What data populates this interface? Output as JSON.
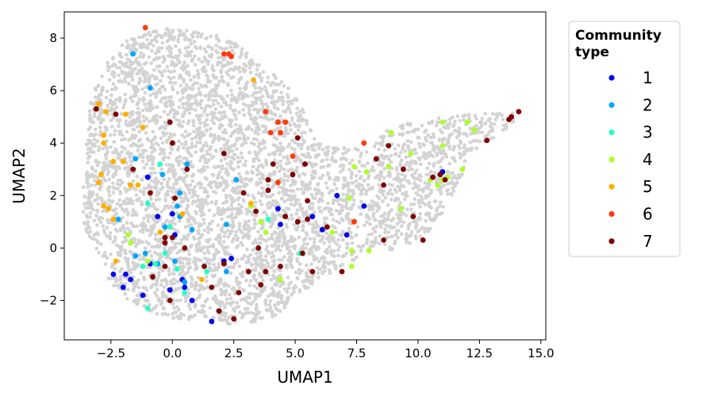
{
  "chart_data": {
    "type": "scatter",
    "xlabel": "UMAP1",
    "ylabel": "UMAP2",
    "xlim": [
      -4.4,
      15.2
    ],
    "ylim": [
      -3.5,
      9.0
    ],
    "xticks": [
      -2.5,
      0.0,
      2.5,
      5.0,
      7.5,
      10.0,
      12.5,
      15.0
    ],
    "xtick_labels": [
      "−2.5",
      "0.0",
      "2.5",
      "5.0",
      "7.5",
      "10.0",
      "12.5",
      "15.0"
    ],
    "yticks": [
      -2,
      0,
      2,
      4,
      6,
      8
    ],
    "ytick_labels": [
      "−2",
      "0",
      "2",
      "4",
      "6",
      "8"
    ],
    "grid": false,
    "legend": {
      "title": "Community type",
      "title_lines": [
        "Community",
        "type"
      ],
      "placement": "outside-right"
    },
    "background_color": "#d3d3d3",
    "series": [
      {
        "name": "1",
        "color": "#0000ee",
        "points": [
          [
            -1.0,
            2.7
          ],
          [
            -0.6,
            1.2
          ],
          [
            0.0,
            1.3
          ],
          [
            0.8,
            -2.0
          ],
          [
            1.6,
            -2.8
          ],
          [
            -2.4,
            -1.0
          ],
          [
            -1.9,
            -1.0
          ],
          [
            -2.0,
            -1.5
          ],
          [
            -1.7,
            -1.2
          ],
          [
            -1.2,
            -1.8
          ],
          [
            0.4,
            -1.2
          ],
          [
            0.5,
            -1.5
          ],
          [
            -0.1,
            -1.6
          ],
          [
            2.1,
            -0.5
          ],
          [
            2.4,
            -0.4
          ],
          [
            4.3,
            1.5
          ],
          [
            4.4,
            0.9
          ],
          [
            5.7,
            1.2
          ],
          [
            6.1,
            0.7
          ],
          [
            6.7,
            2.0
          ],
          [
            7.1,
            0.5
          ],
          [
            7.8,
            1.6
          ],
          [
            11.0,
            2.9
          ],
          [
            -0.9,
            -0.6
          ],
          [
            0.1,
            0.5
          ]
        ]
      },
      {
        "name": "2",
        "color": "#00a5ff",
        "points": [
          [
            -1.6,
            7.4
          ],
          [
            -0.9,
            6.1
          ],
          [
            -1.5,
            3.4
          ],
          [
            -0.4,
            2.8
          ],
          [
            0.3,
            2.1
          ],
          [
            0.2,
            1.6
          ],
          [
            0.6,
            3.2
          ],
          [
            -0.3,
            0.8
          ],
          [
            0.1,
            -0.5
          ],
          [
            0.8,
            0.7
          ],
          [
            2.2,
            0.9
          ],
          [
            2.6,
            2.6
          ],
          [
            -1.1,
            -0.2
          ],
          [
            -1.5,
            -0.3
          ],
          [
            -2.2,
            1.1
          ],
          [
            -0.6,
            -0.6
          ],
          [
            0.5,
            -1.3
          ],
          [
            2.2,
            -0.9
          ],
          [
            0.3,
            1.2
          ]
        ]
      },
      {
        "name": "3",
        "color": "#26ffc4",
        "points": [
          [
            -0.5,
            3.2
          ],
          [
            -1.0,
            1.7
          ],
          [
            -0.1,
            0.8
          ],
          [
            -0.3,
            -0.2
          ],
          [
            -0.7,
            -0.6
          ],
          [
            -1.2,
            -0.7
          ],
          [
            0.2,
            -0.8
          ],
          [
            0.5,
            -1.7
          ],
          [
            -1.0,
            -2.3
          ],
          [
            1.4,
            -0.9
          ],
          [
            3.9,
            1.1
          ],
          [
            5.2,
            -0.2
          ]
        ]
      },
      {
        "name": "4",
        "color": "#adff2b",
        "points": [
          [
            3.2,
            1.6
          ],
          [
            3.8,
            0.6
          ],
          [
            4.4,
            -1.2
          ],
          [
            6.5,
            0.6
          ],
          [
            7.2,
            1.9
          ],
          [
            7.4,
            3.1
          ],
          [
            7.9,
            2.9
          ],
          [
            8.9,
            4.4
          ],
          [
            8.8,
            3.1
          ],
          [
            9.7,
            3.6
          ],
          [
            9.3,
            1.5
          ],
          [
            10.5,
            2.6
          ],
          [
            11.0,
            2.6
          ],
          [
            11.2,
            2.7
          ],
          [
            11.0,
            4.8
          ],
          [
            11.0,
            3.9
          ],
          [
            11.8,
            3.0
          ],
          [
            12.0,
            4.8
          ],
          [
            12.3,
            4.5
          ],
          [
            10.8,
            2.4
          ],
          [
            7.3,
            -0.1
          ],
          [
            7.3,
            -0.7
          ],
          [
            8.0,
            -0.1
          ],
          [
            -1.0,
            -0.5
          ],
          [
            -1.7,
            0.2
          ],
          [
            -1.8,
            0.5
          ],
          [
            3.6,
            1.0
          ]
        ]
      },
      {
        "name": "5",
        "color": "#ffae00",
        "points": [
          [
            -3.0,
            5.5
          ],
          [
            -2.7,
            5.2
          ],
          [
            -3.1,
            5.3
          ],
          [
            -1.9,
            5.1
          ],
          [
            -1.2,
            4.6
          ],
          [
            -2.8,
            4.3
          ],
          [
            -2.8,
            4.0
          ],
          [
            -2.4,
            3.3
          ],
          [
            -2.0,
            3.3
          ],
          [
            -1.7,
            2.4
          ],
          [
            -1.4,
            2.4
          ],
          [
            -2.9,
            2.8
          ],
          [
            -3.0,
            2.5
          ],
          [
            -2.8,
            1.6
          ],
          [
            -2.6,
            1.5
          ],
          [
            -2.4,
            1.1
          ],
          [
            -2.3,
            -0.5
          ],
          [
            -0.5,
            0.6
          ],
          [
            0.4,
            1.3
          ],
          [
            1.2,
            -1.2
          ],
          [
            3.3,
            6.4
          ],
          [
            3.2,
            1.7
          ],
          [
            7.4,
            1.0
          ]
        ]
      },
      {
        "name": "6",
        "color": "#ff3a0a",
        "points": [
          [
            -1.1,
            8.4
          ],
          [
            2.1,
            7.4
          ],
          [
            2.4,
            7.3
          ],
          [
            2.3,
            7.4
          ],
          [
            3.8,
            5.2
          ],
          [
            4.0,
            4.4
          ],
          [
            4.3,
            4.8
          ],
          [
            4.6,
            4.8
          ],
          [
            4.4,
            4.4
          ],
          [
            4.9,
            3.5
          ],
          [
            4.3,
            2.5
          ],
          [
            7.4,
            1.0
          ],
          [
            7.8,
            4.0
          ]
        ]
      },
      {
        "name": "7",
        "color": "#7f0000",
        "points": [
          [
            -3.1,
            5.3
          ],
          [
            -2.3,
            5.1
          ],
          [
            -0.1,
            4.8
          ],
          [
            0.0,
            4.0
          ],
          [
            -1.6,
            3.0
          ],
          [
            -0.9,
            2.1
          ],
          [
            0.1,
            1.9
          ],
          [
            -0.3,
            0.4
          ],
          [
            0.0,
            0.4
          ],
          [
            0.5,
            0.0
          ],
          [
            0.6,
            3.0
          ],
          [
            2.1,
            3.6
          ],
          [
            2.9,
            2.1
          ],
          [
            3.4,
            1.4
          ],
          [
            3.9,
            2.6
          ],
          [
            3.9,
            2.2
          ],
          [
            4.1,
            3.2
          ],
          [
            4.6,
            1.2
          ],
          [
            4.9,
            2.8
          ],
          [
            5.1,
            4.2
          ],
          [
            5.1,
            1.0
          ],
          [
            5.4,
            3.2
          ],
          [
            5.5,
            1.8
          ],
          [
            5.5,
            1.1
          ],
          [
            5.3,
            -0.2
          ],
          [
            5.7,
            -0.9
          ],
          [
            6.3,
            0.8
          ],
          [
            6.9,
            -0.9
          ],
          [
            8.3,
            3.4
          ],
          [
            8.6,
            2.4
          ],
          [
            8.8,
            3.9
          ],
          [
            9.4,
            3.0
          ],
          [
            9.8,
            1.2
          ],
          [
            10.2,
            0.3
          ],
          [
            10.6,
            2.7
          ],
          [
            10.9,
            2.8
          ],
          [
            11.1,
            2.6
          ],
          [
            12.8,
            4.1
          ],
          [
            13.8,
            5.0
          ],
          [
            14.1,
            5.2
          ],
          [
            13.7,
            4.9
          ],
          [
            8.6,
            0.3
          ],
          [
            1.3,
            -0.7
          ],
          [
            1.9,
            -2.4
          ],
          [
            1.6,
            -1.5
          ],
          [
            2.5,
            -2.7
          ],
          [
            2.7,
            -1.7
          ],
          [
            3.1,
            -0.9
          ],
          [
            3.6,
            -1.4
          ],
          [
            3.8,
            -0.9
          ],
          [
            4.4,
            -0.7
          ],
          [
            2.1,
            -0.6
          ],
          [
            3.5,
            0.0
          ],
          [
            -0.3,
            -0.7
          ],
          [
            -0.8,
            -1.1
          ],
          [
            -0.1,
            -2.0
          ],
          [
            -0.3,
            0.2
          ]
        ]
      }
    ]
  }
}
